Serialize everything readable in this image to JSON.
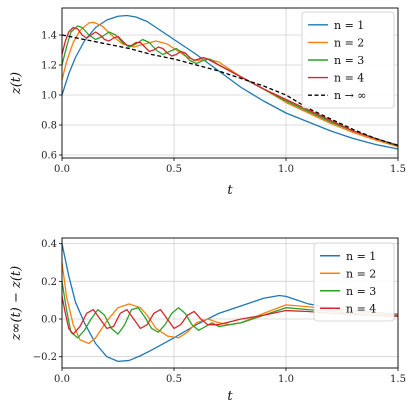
{
  "chart_data": [
    {
      "type": "line",
      "xlabel": "t",
      "ylabel": "z(t)",
      "xlim": [
        0,
        1.5
      ],
      "ylim": [
        0.58,
        1.58
      ],
      "xticks": [
        "0.0",
        "0.5",
        "1.0",
        "1.5"
      ],
      "yticks": [
        "0.6",
        "0.8",
        "1.0",
        "1.2",
        "1.4"
      ],
      "grid": true,
      "legend": "top-right",
      "series": [
        {
          "name": "n = 1",
          "color": "#1f77b4",
          "dash": "solid",
          "x": [
            0,
            0.03,
            0.06,
            0.1,
            0.15,
            0.2,
            0.25,
            0.29,
            0.33,
            0.38,
            0.43,
            0.5,
            0.55,
            0.6,
            0.7,
            0.8,
            0.9,
            1.0,
            1.1,
            1.2,
            1.3,
            1.4,
            1.5
          ],
          "y": [
            1.0,
            1.14,
            1.25,
            1.36,
            1.45,
            1.5,
            1.525,
            1.53,
            1.52,
            1.49,
            1.44,
            1.37,
            1.32,
            1.27,
            1.16,
            1.05,
            0.96,
            0.88,
            0.82,
            0.76,
            0.71,
            0.67,
            0.64
          ]
        },
        {
          "name": "n = 2",
          "color": "#ff7f0e",
          "dash": "solid",
          "x": [
            0,
            0.02,
            0.05,
            0.08,
            0.12,
            0.14,
            0.18,
            0.22,
            0.27,
            0.32,
            0.37,
            0.42,
            0.47,
            0.52,
            0.56,
            0.6,
            0.65,
            0.7,
            0.75,
            0.8,
            0.9,
            1.0,
            1.1,
            1.2,
            1.3,
            1.4,
            1.5
          ],
          "y": [
            1.1,
            1.22,
            1.35,
            1.43,
            1.48,
            1.485,
            1.46,
            1.4,
            1.34,
            1.32,
            1.34,
            1.36,
            1.34,
            1.29,
            1.25,
            1.23,
            1.24,
            1.22,
            1.17,
            1.12,
            1.04,
            0.95,
            0.88,
            0.81,
            0.75,
            0.7,
            0.655
          ]
        },
        {
          "name": "n = 3",
          "color": "#2ca02c",
          "dash": "solid",
          "x": [
            0,
            0.02,
            0.04,
            0.07,
            0.09,
            0.12,
            0.15,
            0.18,
            0.21,
            0.24,
            0.27,
            0.3,
            0.33,
            0.36,
            0.39,
            0.42,
            0.45,
            0.48,
            0.51,
            0.54,
            0.57,
            0.6,
            0.63,
            0.66,
            0.7,
            0.8,
            0.9,
            1.0,
            1.1,
            1.2,
            1.3,
            1.4,
            1.5
          ],
          "y": [
            1.2,
            1.32,
            1.42,
            1.46,
            1.45,
            1.4,
            1.37,
            1.39,
            1.42,
            1.4,
            1.35,
            1.32,
            1.34,
            1.37,
            1.35,
            1.3,
            1.27,
            1.29,
            1.31,
            1.28,
            1.23,
            1.21,
            1.23,
            1.24,
            1.2,
            1.12,
            1.04,
            0.96,
            0.89,
            0.82,
            0.76,
            0.71,
            0.66
          ]
        },
        {
          "name": "n = 4",
          "color": "#d62728",
          "dash": "solid",
          "x": [
            0,
            0.015,
            0.03,
            0.05,
            0.07,
            0.09,
            0.11,
            0.13,
            0.15,
            0.17,
            0.19,
            0.21,
            0.23,
            0.25,
            0.27,
            0.29,
            0.31,
            0.33,
            0.35,
            0.37,
            0.39,
            0.41,
            0.43,
            0.45,
            0.47,
            0.49,
            0.51,
            0.53,
            0.55,
            0.57,
            0.59,
            0.61,
            0.63,
            0.65,
            0.7,
            0.8,
            0.9,
            1.0,
            1.1,
            1.2,
            1.3,
            1.4,
            1.5
          ],
          "y": [
            1.27,
            1.36,
            1.42,
            1.45,
            1.44,
            1.4,
            1.38,
            1.4,
            1.42,
            1.4,
            1.37,
            1.36,
            1.38,
            1.39,
            1.36,
            1.33,
            1.33,
            1.35,
            1.35,
            1.32,
            1.29,
            1.3,
            1.32,
            1.31,
            1.28,
            1.26,
            1.27,
            1.29,
            1.28,
            1.25,
            1.23,
            1.24,
            1.25,
            1.24,
            1.2,
            1.12,
            1.04,
            0.97,
            0.9,
            0.83,
            0.76,
            0.71,
            0.665
          ]
        },
        {
          "name": "n → ∞",
          "color": "#000000",
          "dash": "dashed",
          "x": [
            0,
            0.1,
            0.2,
            0.3,
            0.4,
            0.5,
            0.6,
            0.7,
            0.8,
            0.9,
            1.0,
            1.1,
            1.2,
            1.3,
            1.4,
            1.5
          ],
          "y": [
            1.4,
            1.37,
            1.34,
            1.31,
            1.27,
            1.24,
            1.2,
            1.16,
            1.11,
            1.06,
            1.0,
            0.91,
            0.84,
            0.77,
            0.71,
            0.665
          ]
        }
      ]
    },
    {
      "type": "line",
      "xlabel": "t",
      "ylabel": "z∞(t) − z(t)",
      "xlim": [
        0,
        1.5
      ],
      "ylim": [
        -0.26,
        0.43
      ],
      "xticks": [
        "0.0",
        "0.5",
        "1.0",
        "1.5"
      ],
      "yticks": [
        "−0.2",
        "0.0",
        "0.2",
        "0.4"
      ],
      "grid": true,
      "legend": "top-right",
      "series": [
        {
          "name": "n = 1",
          "color": "#1f77b4",
          "dash": "solid",
          "x": [
            0,
            0.03,
            0.06,
            0.1,
            0.15,
            0.2,
            0.25,
            0.3,
            0.35,
            0.4,
            0.5,
            0.6,
            0.7,
            0.8,
            0.9,
            0.97,
            1.0,
            1.05,
            1.1,
            1.2,
            1.3,
            1.4,
            1.5
          ],
          "y": [
            0.4,
            0.23,
            0.09,
            -0.02,
            -0.13,
            -0.2,
            -0.225,
            -0.22,
            -0.195,
            -0.165,
            -0.1,
            -0.03,
            0.03,
            0.07,
            0.11,
            0.125,
            0.12,
            0.1,
            0.08,
            0.06,
            0.045,
            0.035,
            0.025
          ]
        },
        {
          "name": "n = 2",
          "color": "#ff7f0e",
          "dash": "solid",
          "x": [
            0,
            0.02,
            0.05,
            0.08,
            0.12,
            0.15,
            0.2,
            0.25,
            0.3,
            0.35,
            0.38,
            0.42,
            0.47,
            0.52,
            0.56,
            0.6,
            0.65,
            0.7,
            0.75,
            0.8,
            0.9,
            1.0,
            1.1,
            1.2,
            1.3,
            1.4,
            1.5
          ],
          "y": [
            0.3,
            0.12,
            -0.03,
            -0.11,
            -0.13,
            -0.1,
            -0.01,
            0.06,
            0.08,
            0.06,
            0.02,
            -0.05,
            -0.09,
            -0.1,
            -0.07,
            -0.02,
            0.0,
            -0.02,
            -0.03,
            -0.02,
            0.03,
            0.075,
            0.065,
            0.05,
            0.04,
            0.03,
            0.02
          ]
        },
        {
          "name": "n = 3",
          "color": "#2ca02c",
          "dash": "solid",
          "x": [
            0,
            0.02,
            0.04,
            0.07,
            0.1,
            0.13,
            0.16,
            0.19,
            0.22,
            0.25,
            0.28,
            0.31,
            0.34,
            0.37,
            0.4,
            0.43,
            0.46,
            0.49,
            0.52,
            0.55,
            0.58,
            0.61,
            0.64,
            0.67,
            0.7,
            0.8,
            0.9,
            1.0,
            1.1,
            1.2,
            1.3,
            1.4,
            1.5
          ],
          "y": [
            0.2,
            0.05,
            -0.07,
            -0.1,
            -0.06,
            0.0,
            0.05,
            0.02,
            -0.05,
            -0.08,
            -0.03,
            0.05,
            0.06,
            0.01,
            -0.05,
            -0.07,
            -0.03,
            0.03,
            0.06,
            0.03,
            -0.03,
            -0.06,
            -0.04,
            -0.02,
            -0.04,
            -0.02,
            0.02,
            0.06,
            0.05,
            0.04,
            0.03,
            0.02,
            0.015
          ]
        },
        {
          "name": "n = 4",
          "color": "#d62728",
          "dash": "solid",
          "x": [
            0,
            0.015,
            0.03,
            0.05,
            0.08,
            0.11,
            0.14,
            0.17,
            0.2,
            0.23,
            0.26,
            0.29,
            0.32,
            0.35,
            0.38,
            0.41,
            0.44,
            0.47,
            0.5,
            0.53,
            0.56,
            0.59,
            0.62,
            0.65,
            0.7,
            0.8,
            0.9,
            1.0,
            1.1,
            1.2,
            1.3,
            1.4,
            1.5
          ],
          "y": [
            0.12,
            0.03,
            -0.05,
            -0.08,
            -0.04,
            0.03,
            0.05,
            0.0,
            -0.05,
            -0.04,
            0.03,
            0.05,
            0.0,
            -0.05,
            -0.03,
            0.03,
            0.05,
            0.0,
            -0.05,
            -0.03,
            0.02,
            0.04,
            0.0,
            -0.03,
            -0.03,
            0.0,
            0.02,
            0.045,
            0.04,
            0.03,
            0.025,
            0.02,
            0.015
          ]
        }
      ]
    }
  ]
}
